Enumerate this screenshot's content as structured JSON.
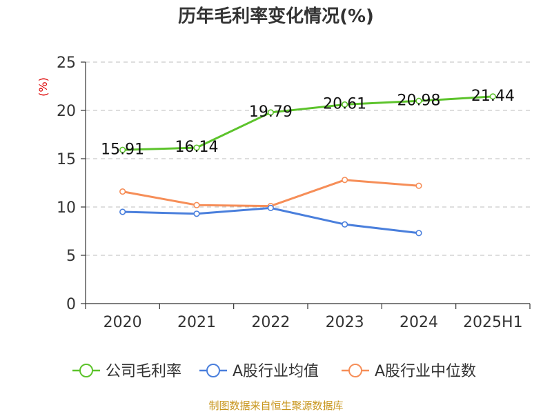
{
  "chart_data": {
    "type": "line",
    "title": "历年毛利率变化情况(%)",
    "ylabel": "(%)",
    "xlabel": "",
    "categories": [
      "2020",
      "2021",
      "2022",
      "2023",
      "2024",
      "2025H1"
    ],
    "ylim": [
      0,
      25
    ],
    "yticks": [
      "0",
      "5",
      "10",
      "15",
      "20",
      "25"
    ],
    "grid": true,
    "legend_position": "bottom",
    "series": [
      {
        "name": "公司毛利率",
        "color": "#5cc32b",
        "values": [
          15.91,
          16.14,
          19.79,
          20.61,
          20.98,
          21.44
        ],
        "labels": [
          "15.91",
          "16.14",
          "19.79",
          "20.61",
          "20.98",
          "21.44"
        ]
      },
      {
        "name": "A股行业均值",
        "color": "#4a7fdc",
        "values": [
          9.5,
          9.3,
          9.9,
          8.2,
          7.3,
          null
        ]
      },
      {
        "name": "A股行业中位数",
        "color": "#f68e58",
        "values": [
          11.6,
          10.2,
          10.1,
          12.8,
          12.2,
          null
        ]
      }
    ],
    "source": "制图数据来自恒生聚源数据库"
  }
}
